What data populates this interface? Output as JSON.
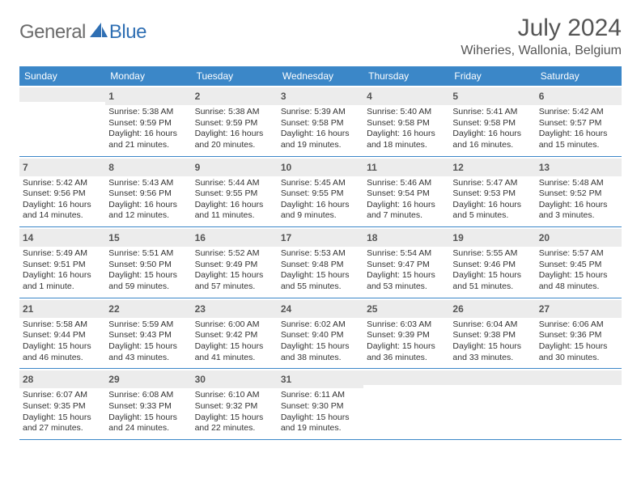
{
  "brand": {
    "part1": "General",
    "part2": "Blue"
  },
  "title": "July 2024",
  "location": "Wiheries, Wallonia, Belgium",
  "colors": {
    "header_bg": "#3b87c8",
    "header_text": "#ffffff",
    "daynum_bg": "#ececec",
    "border": "#3b87c8",
    "brand_gray": "#6b6b6b",
    "brand_blue": "#2f6fb3"
  },
  "day_headers": [
    "Sunday",
    "Monday",
    "Tuesday",
    "Wednesday",
    "Thursday",
    "Friday",
    "Saturday"
  ],
  "weeks": [
    [
      {
        "n": "",
        "lines": []
      },
      {
        "n": "1",
        "lines": [
          "Sunrise: 5:38 AM",
          "Sunset: 9:59 PM",
          "Daylight: 16 hours and 21 minutes."
        ]
      },
      {
        "n": "2",
        "lines": [
          "Sunrise: 5:38 AM",
          "Sunset: 9:59 PM",
          "Daylight: 16 hours and 20 minutes."
        ]
      },
      {
        "n": "3",
        "lines": [
          "Sunrise: 5:39 AM",
          "Sunset: 9:58 PM",
          "Daylight: 16 hours and 19 minutes."
        ]
      },
      {
        "n": "4",
        "lines": [
          "Sunrise: 5:40 AM",
          "Sunset: 9:58 PM",
          "Daylight: 16 hours and 18 minutes."
        ]
      },
      {
        "n": "5",
        "lines": [
          "Sunrise: 5:41 AM",
          "Sunset: 9:58 PM",
          "Daylight: 16 hours and 16 minutes."
        ]
      },
      {
        "n": "6",
        "lines": [
          "Sunrise: 5:42 AM",
          "Sunset: 9:57 PM",
          "Daylight: 16 hours and 15 minutes."
        ]
      }
    ],
    [
      {
        "n": "7",
        "lines": [
          "Sunrise: 5:42 AM",
          "Sunset: 9:56 PM",
          "Daylight: 16 hours and 14 minutes."
        ]
      },
      {
        "n": "8",
        "lines": [
          "Sunrise: 5:43 AM",
          "Sunset: 9:56 PM",
          "Daylight: 16 hours and 12 minutes."
        ]
      },
      {
        "n": "9",
        "lines": [
          "Sunrise: 5:44 AM",
          "Sunset: 9:55 PM",
          "Daylight: 16 hours and 11 minutes."
        ]
      },
      {
        "n": "10",
        "lines": [
          "Sunrise: 5:45 AM",
          "Sunset: 9:55 PM",
          "Daylight: 16 hours and 9 minutes."
        ]
      },
      {
        "n": "11",
        "lines": [
          "Sunrise: 5:46 AM",
          "Sunset: 9:54 PM",
          "Daylight: 16 hours and 7 minutes."
        ]
      },
      {
        "n": "12",
        "lines": [
          "Sunrise: 5:47 AM",
          "Sunset: 9:53 PM",
          "Daylight: 16 hours and 5 minutes."
        ]
      },
      {
        "n": "13",
        "lines": [
          "Sunrise: 5:48 AM",
          "Sunset: 9:52 PM",
          "Daylight: 16 hours and 3 minutes."
        ]
      }
    ],
    [
      {
        "n": "14",
        "lines": [
          "Sunrise: 5:49 AM",
          "Sunset: 9:51 PM",
          "Daylight: 16 hours and 1 minute."
        ]
      },
      {
        "n": "15",
        "lines": [
          "Sunrise: 5:51 AM",
          "Sunset: 9:50 PM",
          "Daylight: 15 hours and 59 minutes."
        ]
      },
      {
        "n": "16",
        "lines": [
          "Sunrise: 5:52 AM",
          "Sunset: 9:49 PM",
          "Daylight: 15 hours and 57 minutes."
        ]
      },
      {
        "n": "17",
        "lines": [
          "Sunrise: 5:53 AM",
          "Sunset: 9:48 PM",
          "Daylight: 15 hours and 55 minutes."
        ]
      },
      {
        "n": "18",
        "lines": [
          "Sunrise: 5:54 AM",
          "Sunset: 9:47 PM",
          "Daylight: 15 hours and 53 minutes."
        ]
      },
      {
        "n": "19",
        "lines": [
          "Sunrise: 5:55 AM",
          "Sunset: 9:46 PM",
          "Daylight: 15 hours and 51 minutes."
        ]
      },
      {
        "n": "20",
        "lines": [
          "Sunrise: 5:57 AM",
          "Sunset: 9:45 PM",
          "Daylight: 15 hours and 48 minutes."
        ]
      }
    ],
    [
      {
        "n": "21",
        "lines": [
          "Sunrise: 5:58 AM",
          "Sunset: 9:44 PM",
          "Daylight: 15 hours and 46 minutes."
        ]
      },
      {
        "n": "22",
        "lines": [
          "Sunrise: 5:59 AM",
          "Sunset: 9:43 PM",
          "Daylight: 15 hours and 43 minutes."
        ]
      },
      {
        "n": "23",
        "lines": [
          "Sunrise: 6:00 AM",
          "Sunset: 9:42 PM",
          "Daylight: 15 hours and 41 minutes."
        ]
      },
      {
        "n": "24",
        "lines": [
          "Sunrise: 6:02 AM",
          "Sunset: 9:40 PM",
          "Daylight: 15 hours and 38 minutes."
        ]
      },
      {
        "n": "25",
        "lines": [
          "Sunrise: 6:03 AM",
          "Sunset: 9:39 PM",
          "Daylight: 15 hours and 36 minutes."
        ]
      },
      {
        "n": "26",
        "lines": [
          "Sunrise: 6:04 AM",
          "Sunset: 9:38 PM",
          "Daylight: 15 hours and 33 minutes."
        ]
      },
      {
        "n": "27",
        "lines": [
          "Sunrise: 6:06 AM",
          "Sunset: 9:36 PM",
          "Daylight: 15 hours and 30 minutes."
        ]
      }
    ],
    [
      {
        "n": "28",
        "lines": [
          "Sunrise: 6:07 AM",
          "Sunset: 9:35 PM",
          "Daylight: 15 hours and 27 minutes."
        ]
      },
      {
        "n": "29",
        "lines": [
          "Sunrise: 6:08 AM",
          "Sunset: 9:33 PM",
          "Daylight: 15 hours and 24 minutes."
        ]
      },
      {
        "n": "30",
        "lines": [
          "Sunrise: 6:10 AM",
          "Sunset: 9:32 PM",
          "Daylight: 15 hours and 22 minutes."
        ]
      },
      {
        "n": "31",
        "lines": [
          "Sunrise: 6:11 AM",
          "Sunset: 9:30 PM",
          "Daylight: 15 hours and 19 minutes."
        ]
      },
      {
        "n": "",
        "lines": []
      },
      {
        "n": "",
        "lines": []
      },
      {
        "n": "",
        "lines": []
      }
    ]
  ]
}
